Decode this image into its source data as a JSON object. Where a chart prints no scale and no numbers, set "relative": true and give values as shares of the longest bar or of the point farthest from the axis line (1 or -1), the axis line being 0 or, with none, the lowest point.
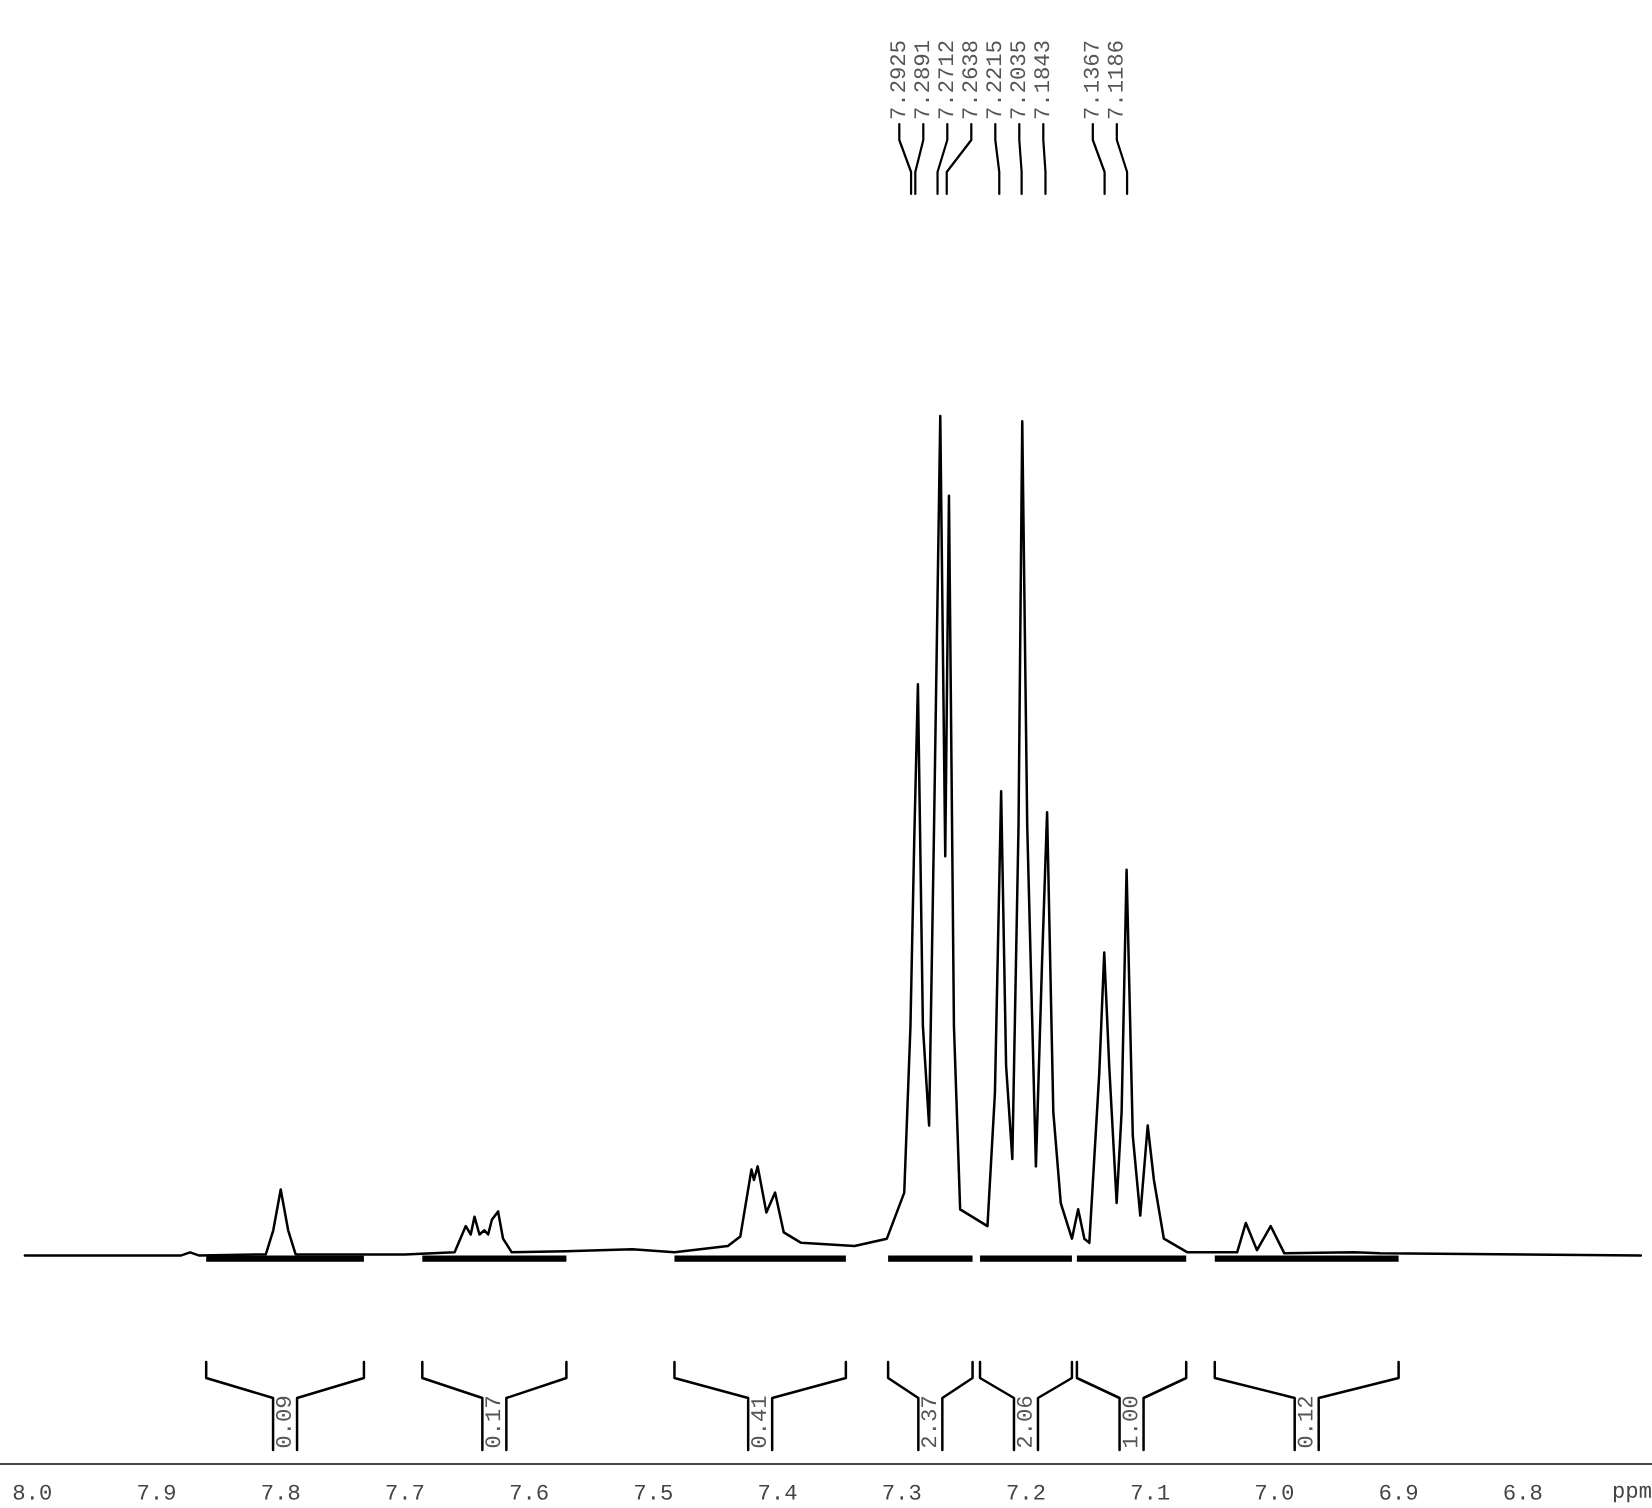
{
  "chart_data": {
    "type": "line",
    "relative": true,
    "xlabel": "ppm",
    "x": [
      8.006,
      7.88,
      7.873,
      7.866,
      7.812,
      7.806,
      7.8,
      7.794,
      7.788,
      7.7,
      7.66,
      7.651,
      7.647,
      7.644,
      7.64,
      7.636,
      7.633,
      7.63,
      7.625,
      7.621,
      7.614,
      7.57,
      7.517,
      7.483,
      7.44,
      7.43,
      7.421,
      7.419,
      7.416,
      7.409,
      7.402,
      7.395,
      7.381,
      7.338,
      7.312,
      7.298,
      7.293,
      7.29,
      7.287,
      7.283,
      7.278,
      7.274,
      7.269,
      7.265,
      7.262,
      7.258,
      7.253,
      7.231,
      7.225,
      7.22,
      7.216,
      7.211,
      7.206,
      7.203,
      7.199,
      7.192,
      7.187,
      7.183,
      7.178,
      7.172,
      7.163,
      7.158,
      7.153,
      7.149,
      7.141,
      7.137,
      7.133,
      7.127,
      7.123,
      7.119,
      7.114,
      7.108,
      7.102,
      7.097,
      7.089,
      7.07,
      7.03,
      7.023,
      7.014,
      7.003,
      6.992,
      6.936,
      6.915,
      6.705
    ],
    "series": [
      {
        "color": "#000000",
        "values": [
          0.199,
          0.199,
          0.202,
          0.199,
          0.2,
          0.223,
          0.262,
          0.223,
          0.2,
          0.2,
          0.202,
          0.227,
          0.219,
          0.236,
          0.219,
          0.223,
          0.219,
          0.233,
          0.241,
          0.215,
          0.202,
          0.203,
          0.205,
          0.202,
          0.208,
          0.217,
          0.281,
          0.271,
          0.284,
          0.24,
          0.259,
          0.221,
          0.211,
          0.208,
          0.215,
          0.259,
          0.418,
          0.593,
          0.744,
          0.418,
          0.323,
          0.609,
          1.0,
          0.58,
          0.924,
          0.418,
          0.243,
          0.227,
          0.354,
          0.642,
          0.38,
          0.291,
          0.609,
          0.995,
          0.609,
          0.284,
          0.481,
          0.622,
          0.336,
          0.249,
          0.215,
          0.243,
          0.215,
          0.211,
          0.373,
          0.488,
          0.38,
          0.249,
          0.336,
          0.567,
          0.313,
          0.237,
          0.323,
          0.271,
          0.215,
          0.202,
          0.202,
          0.23,
          0.204,
          0.227,
          0.201,
          0.202,
          0.201,
          0.199
        ]
      },
      {
        "color": "#000000",
        "x": [
          7.86,
          7.733
        ],
        "values": [
          0.196,
          0.196
        ]
      },
      {
        "color": "#000000",
        "x": [
          7.686,
          7.57
        ],
        "values": [
          0.196,
          0.196
        ]
      },
      {
        "color": "#000000",
        "x": [
          7.483,
          7.345
        ],
        "values": [
          0.196,
          0.196
        ]
      },
      {
        "color": "#000000",
        "x": [
          7.311,
          7.243
        ],
        "values": [
          0.196,
          0.196
        ]
      },
      {
        "color": "#000000",
        "x": [
          7.237,
          7.163
        ],
        "values": [
          0.196,
          0.196
        ]
      },
      {
        "color": "#000000",
        "x": [
          7.159,
          7.071
        ],
        "values": [
          0.196,
          0.196
        ]
      },
      {
        "color": "#000000",
        "x": [
          7.048,
          6.9
        ],
        "values": [
          0.196,
          0.196
        ]
      }
    ],
    "xlim": [
      8.026,
      6.696
    ],
    "xticks": [
      {
        "value": 8.0,
        "label": "8.0"
      },
      7.9,
      7.8,
      7.7,
      7.6,
      7.5,
      7.4,
      7.3,
      7.2,
      7.1,
      {
        "value": 7.0,
        "label": "7.0"
      },
      6.9,
      6.8
    ],
    "annotations": [
      {
        "text": "7.2925",
        "x": 7.2925
      },
      {
        "text": "7.2891",
        "x": 7.2891
      },
      {
        "text": "7.2712",
        "x": 7.2712
      },
      {
        "text": "7.2638",
        "x": 7.2638
      },
      {
        "text": "7.2215",
        "x": 7.2215
      },
      {
        "text": "7.2035",
        "x": 7.2035
      },
      {
        "text": "7.1843",
        "x": 7.1843
      },
      {
        "text": "7.1367",
        "x": 7.1367
      },
      {
        "text": "7.1186",
        "x": 7.1186
      },
      "0.09",
      "0.17",
      "0.41",
      "2.37",
      "2.06",
      "1.00",
      "0.12"
    ]
  }
}
